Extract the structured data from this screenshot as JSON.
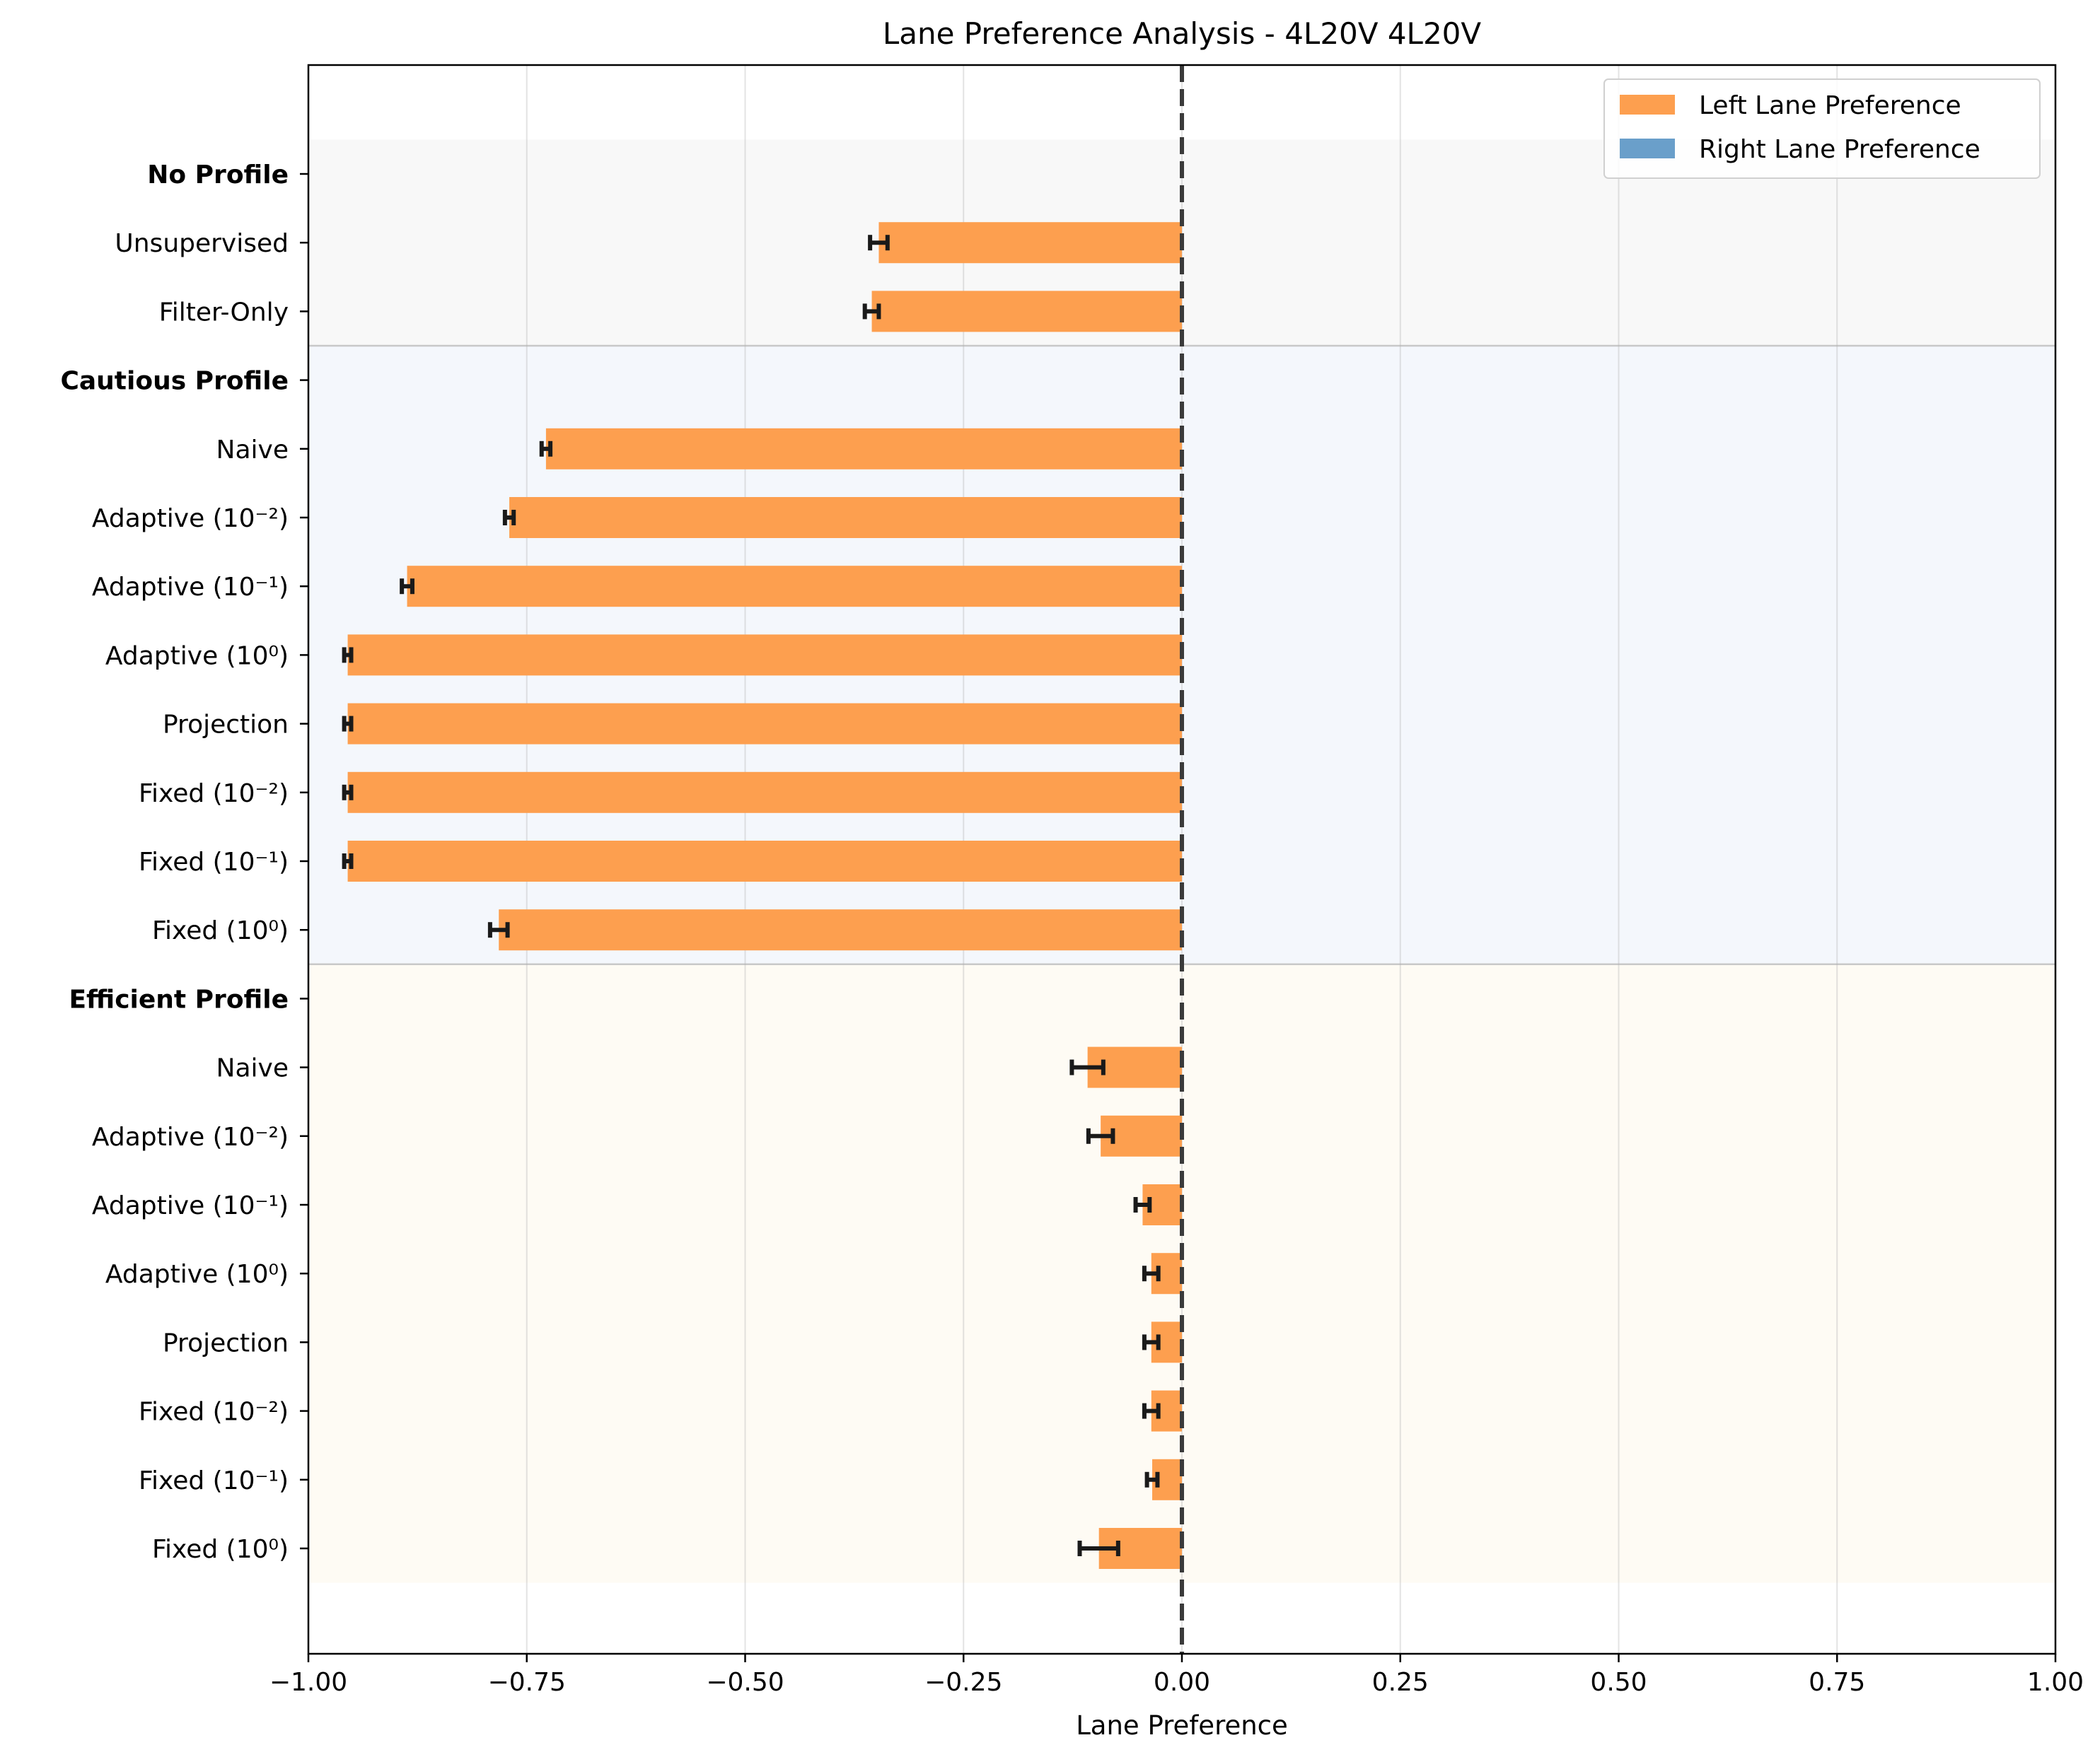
{
  "chart_data": {
    "type": "bar",
    "orientation": "horizontal",
    "title": "Lane Preference Analysis - 4L20V 4L20V",
    "xlabel": "Lane Preference",
    "ylabel": "",
    "xlim": [
      -1.0,
      1.0
    ],
    "xticks": [
      -1.0,
      -0.75,
      -0.5,
      -0.25,
      0.0,
      0.25,
      0.5,
      0.75,
      1.0
    ],
    "xtick_labels": [
      "−1.00",
      "−0.75",
      "−0.50",
      "−0.25",
      "0.00",
      "0.25",
      "0.50",
      "0.75",
      "1.00"
    ],
    "grid": "vertical",
    "reference_line": 0.0,
    "legend": {
      "placement": "top-right",
      "entries": [
        {
          "label": "Left Lane Preference",
          "color": "#fd9f4f"
        },
        {
          "label": "Right Lane Preference",
          "color": "#6a9fca"
        }
      ]
    },
    "groups": [
      {
        "name": "No Profile",
        "background": "#f8f8f8",
        "items": [
          {
            "label": "Unsupervised",
            "value": -0.347,
            "error": 0.01
          },
          {
            "label": "Filter-Only",
            "value": -0.355,
            "error": 0.008
          }
        ]
      },
      {
        "name": "Cautious Profile",
        "background": "#f4f7fc",
        "items": [
          {
            "label": "Naive",
            "value": -0.728,
            "error": 0.005
          },
          {
            "label": "Adaptive (10⁻²)",
            "value": -0.77,
            "error": 0.005
          },
          {
            "label": "Adaptive (10⁻¹)",
            "value": -0.887,
            "error": 0.006
          },
          {
            "label": "Adaptive (10⁰)",
            "value": -0.955,
            "error": 0.004
          },
          {
            "label": "Projection",
            "value": -0.955,
            "error": 0.004
          },
          {
            "label": "Fixed (10⁻²)",
            "value": -0.955,
            "error": 0.004
          },
          {
            "label": "Fixed (10⁻¹)",
            "value": -0.955,
            "error": 0.004
          },
          {
            "label": "Fixed (10⁰)",
            "value": -0.782,
            "error": 0.01
          }
        ]
      },
      {
        "name": "Efficient Profile",
        "background": "#fefbf4",
        "items": [
          {
            "label": "Naive",
            "value": -0.108,
            "error": 0.018
          },
          {
            "label": "Adaptive (10⁻²)",
            "value": -0.093,
            "error": 0.014
          },
          {
            "label": "Adaptive (10⁻¹)",
            "value": -0.045,
            "error": 0.008
          },
          {
            "label": "Adaptive (10⁰)",
            "value": -0.035,
            "error": 0.008
          },
          {
            "label": "Projection",
            "value": -0.035,
            "error": 0.008
          },
          {
            "label": "Fixed (10⁻²)",
            "value": -0.035,
            "error": 0.008
          },
          {
            "label": "Fixed (10⁻¹)",
            "value": -0.034,
            "error": 0.006
          },
          {
            "label": "Fixed (10⁰)",
            "value": -0.095,
            "error": 0.022
          }
        ]
      }
    ]
  }
}
